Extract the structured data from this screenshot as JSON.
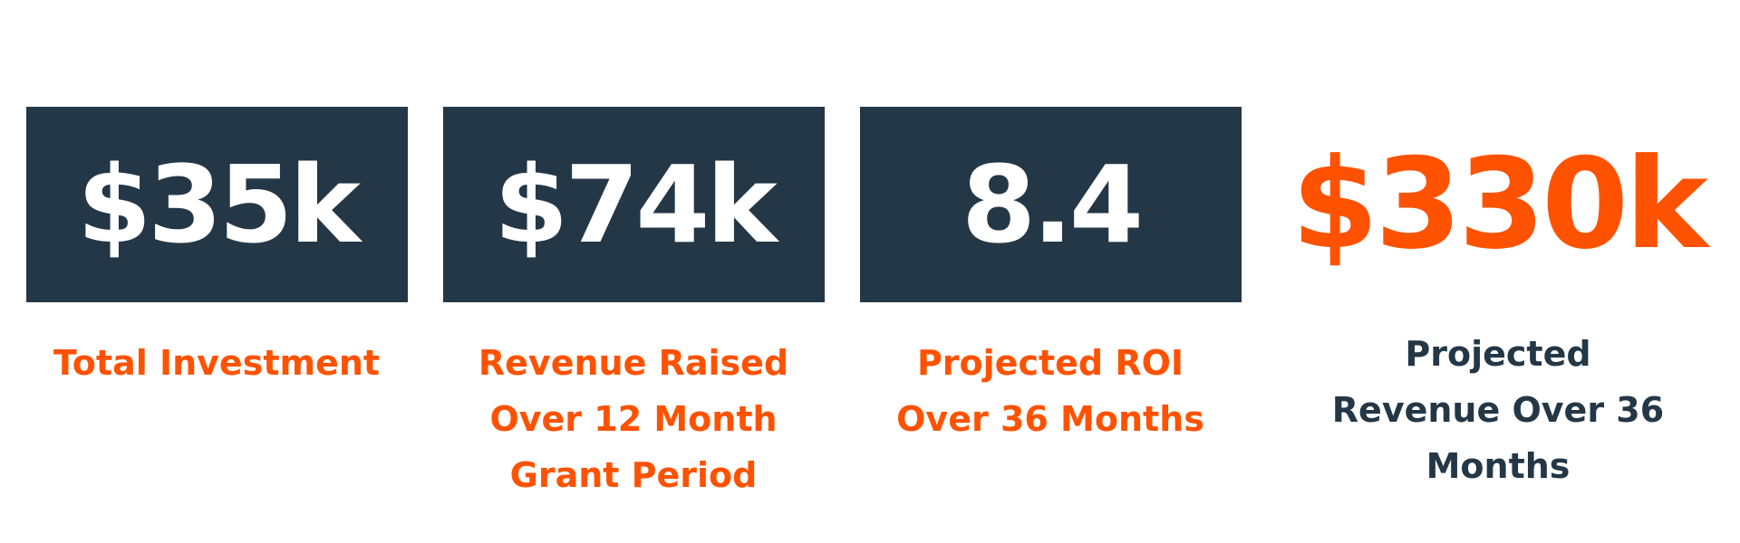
{
  "stats": [
    {
      "value": "$35k",
      "label": [
        "Total Investment"
      ]
    },
    {
      "value": "$74k",
      "label": [
        "Revenue Raised",
        "Over 12 Month",
        "Grant Period"
      ]
    },
    {
      "value": "8.4",
      "label": [
        "Projected ROI",
        "Over 36 Months"
      ]
    },
    {
      "value": "$330k",
      "label": [
        "Projected",
        "Revenue Over 36",
        "Months"
      ]
    }
  ]
}
